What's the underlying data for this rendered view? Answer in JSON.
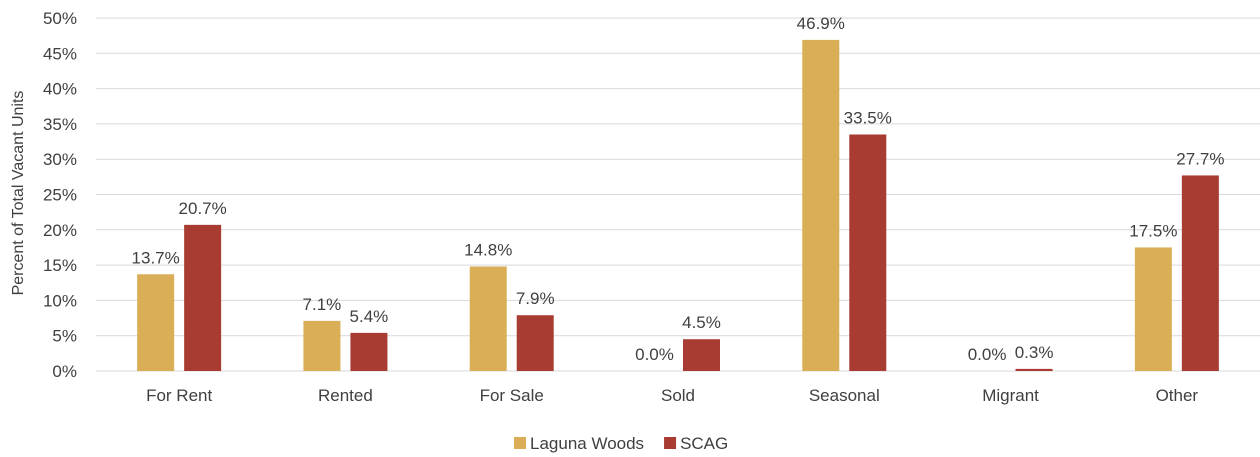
{
  "chart_data": {
    "type": "bar",
    "title": "",
    "xlabel": "",
    "ylabel": "Percent of Total Vacant Units",
    "ylim": [
      0,
      50
    ],
    "y_ticks": [
      "0%",
      "5%",
      "10%",
      "15%",
      "20%",
      "25%",
      "30%",
      "35%",
      "40%",
      "45%",
      "50%"
    ],
    "y_tick_values": [
      0,
      5,
      10,
      15,
      20,
      25,
      30,
      35,
      40,
      45,
      50
    ],
    "grid": true,
    "legend_position": "bottom",
    "categories": [
      "For Rent",
      "Rented",
      "For Sale",
      "Sold",
      "Seasonal",
      "Migrant",
      "Other"
    ],
    "series": [
      {
        "name": "Laguna Woods",
        "color": "#DAAE57",
        "values": [
          13.7,
          7.1,
          14.8,
          0.0,
          46.9,
          0.0,
          17.5
        ],
        "labels": [
          "13.7%",
          "7.1%",
          "14.8%",
          "0.0%",
          "46.9%",
          "0.0%",
          "17.5%"
        ]
      },
      {
        "name": "SCAG",
        "color": "#A83C32",
        "values": [
          20.7,
          5.4,
          7.9,
          4.5,
          33.5,
          0.3,
          27.7
        ],
        "labels": [
          "20.7%",
          "5.4%",
          "7.9%",
          "4.5%",
          "33.5%",
          "0.3%",
          "27.7%"
        ]
      }
    ]
  }
}
